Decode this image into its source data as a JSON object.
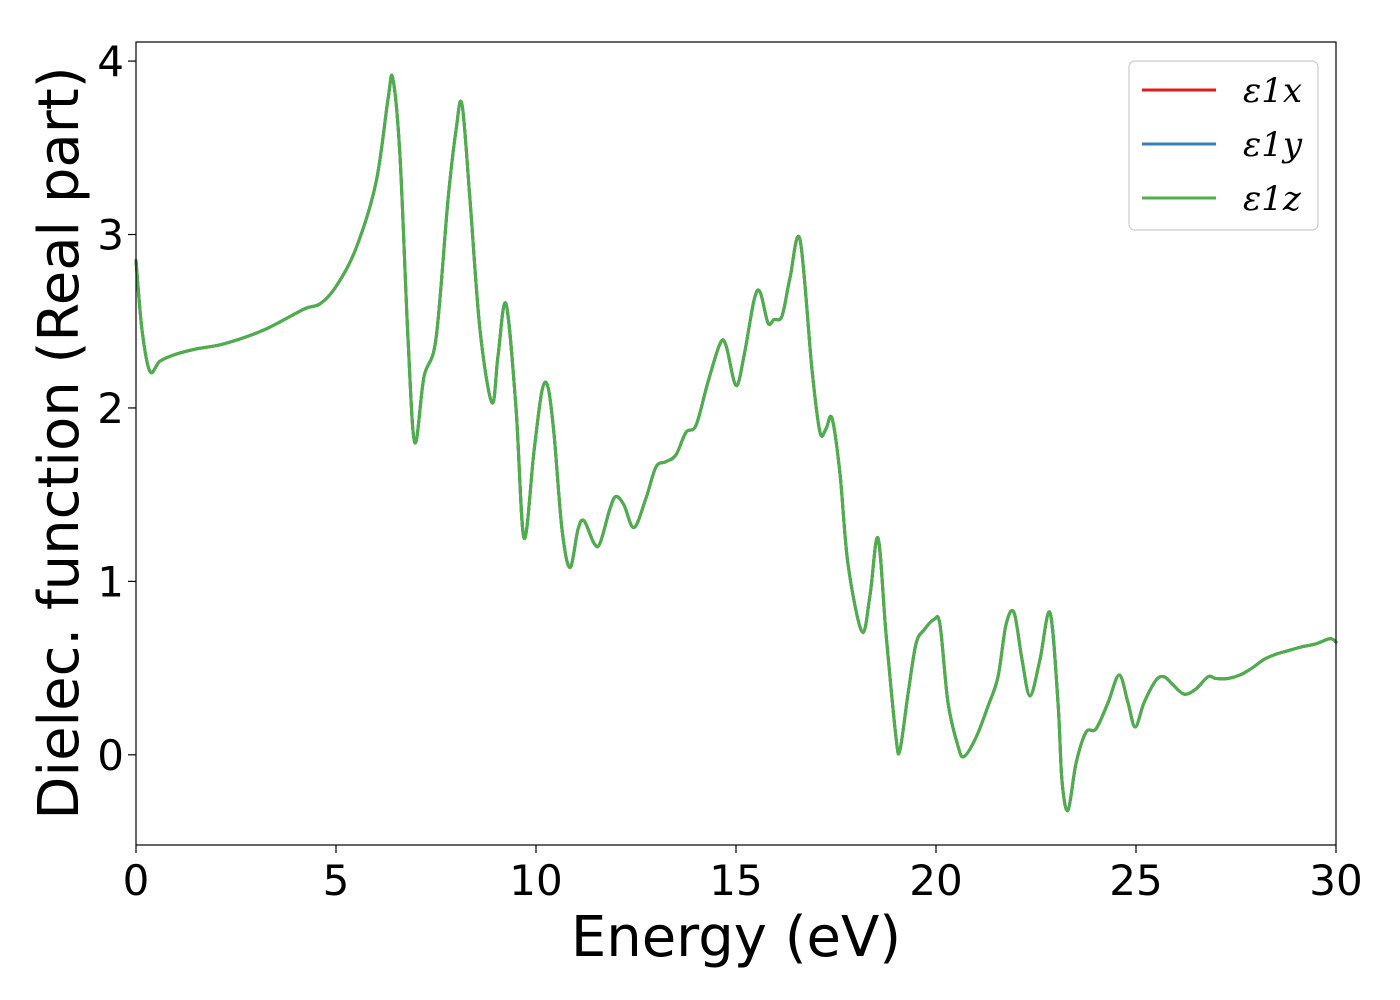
{
  "chart_data": {
    "type": "line",
    "title": "",
    "xlabel": "Energy (eV)",
    "ylabel": "Dielec. function (Real part)",
    "xlim": [
      0,
      30
    ],
    "ylim": [
      -0.52,
      4.11
    ],
    "xticks": [
      0,
      5,
      10,
      15,
      20,
      25,
      30
    ],
    "yticks": [
      0,
      1,
      2,
      3,
      4
    ],
    "xtick_labels": [
      "0",
      "5",
      "10",
      "15",
      "20",
      "25",
      "30"
    ],
    "ytick_labels": [
      "0",
      "1",
      "2",
      "3",
      "4"
    ],
    "grid": false,
    "legend_position": "top-right",
    "series": [
      {
        "name": "ε1x",
        "color": "#e41a1c"
      },
      {
        "name": "ε1y",
        "color": "#377eb8"
      },
      {
        "name": "ε1z",
        "color": "#4daf4a"
      }
    ],
    "curve": {
      "x": [
        0,
        0.15,
        0.35,
        0.6,
        1.0,
        1.5,
        2.2,
        3.2,
        4.2,
        4.6,
        5.0,
        5.5,
        6.0,
        6.3,
        6.42,
        6.6,
        6.8,
        6.97,
        7.2,
        7.5,
        7.8,
        8.0,
        8.15,
        8.35,
        8.6,
        8.9,
        9.05,
        9.25,
        9.5,
        9.7,
        9.95,
        10.15,
        10.3,
        10.45,
        10.65,
        10.85,
        11.05,
        11.2,
        11.45,
        11.6,
        11.85,
        12.0,
        12.2,
        12.45,
        12.75,
        13.0,
        13.25,
        13.5,
        13.75,
        14.0,
        14.3,
        14.6,
        14.75,
        15.0,
        15.2,
        15.45,
        15.6,
        15.8,
        15.95,
        16.15,
        16.35,
        16.6,
        16.9,
        17.1,
        17.25,
        17.4,
        17.6,
        17.8,
        18.15,
        18.35,
        18.55,
        18.75,
        19.0,
        19.1,
        19.3,
        19.5,
        19.7,
        19.95,
        20.1,
        20.3,
        20.55,
        20.7,
        21.0,
        21.3,
        21.55,
        21.75,
        21.95,
        22.15,
        22.35,
        22.6,
        22.85,
        23.05,
        23.15,
        23.3,
        23.5,
        23.75,
        24.0,
        24.3,
        24.58,
        24.8,
        24.98,
        25.2,
        25.5,
        25.7,
        25.9,
        26.2,
        26.5,
        26.8,
        27.0,
        27.3,
        27.6,
        27.9,
        28.2,
        28.5,
        28.8,
        29.1,
        29.5,
        29.85,
        30.0
      ],
      "y": [
        2.85,
        2.45,
        2.21,
        2.27,
        2.31,
        2.34,
        2.37,
        2.45,
        2.57,
        2.6,
        2.7,
        2.92,
        3.3,
        3.78,
        3.9,
        3.45,
        2.4,
        1.8,
        2.18,
        2.4,
        3.2,
        3.6,
        3.75,
        3.2,
        2.45,
        2.03,
        2.3,
        2.6,
        2.0,
        1.25,
        1.75,
        2.1,
        2.12,
        1.85,
        1.3,
        1.08,
        1.3,
        1.35,
        1.22,
        1.22,
        1.42,
        1.49,
        1.44,
        1.31,
        1.48,
        1.66,
        1.69,
        1.73,
        1.86,
        1.9,
        2.15,
        2.37,
        2.36,
        2.13,
        2.3,
        2.62,
        2.67,
        2.49,
        2.51,
        2.53,
        2.75,
        2.97,
        2.22,
        1.86,
        1.88,
        1.94,
        1.62,
        1.1,
        0.71,
        0.92,
        1.25,
        0.7,
        0.1,
        0.03,
        0.35,
        0.64,
        0.72,
        0.78,
        0.75,
        0.3,
        0.05,
        -0.01,
        0.1,
        0.28,
        0.45,
        0.75,
        0.82,
        0.55,
        0.34,
        0.55,
        0.82,
        0.3,
        -0.15,
        -0.32,
        -0.05,
        0.13,
        0.15,
        0.3,
        0.46,
        0.3,
        0.16,
        0.3,
        0.43,
        0.45,
        0.41,
        0.35,
        0.38,
        0.45,
        0.44,
        0.44,
        0.46,
        0.5,
        0.55,
        0.58,
        0.6,
        0.62,
        0.64,
        0.67,
        0.65
      ]
    }
  }
}
